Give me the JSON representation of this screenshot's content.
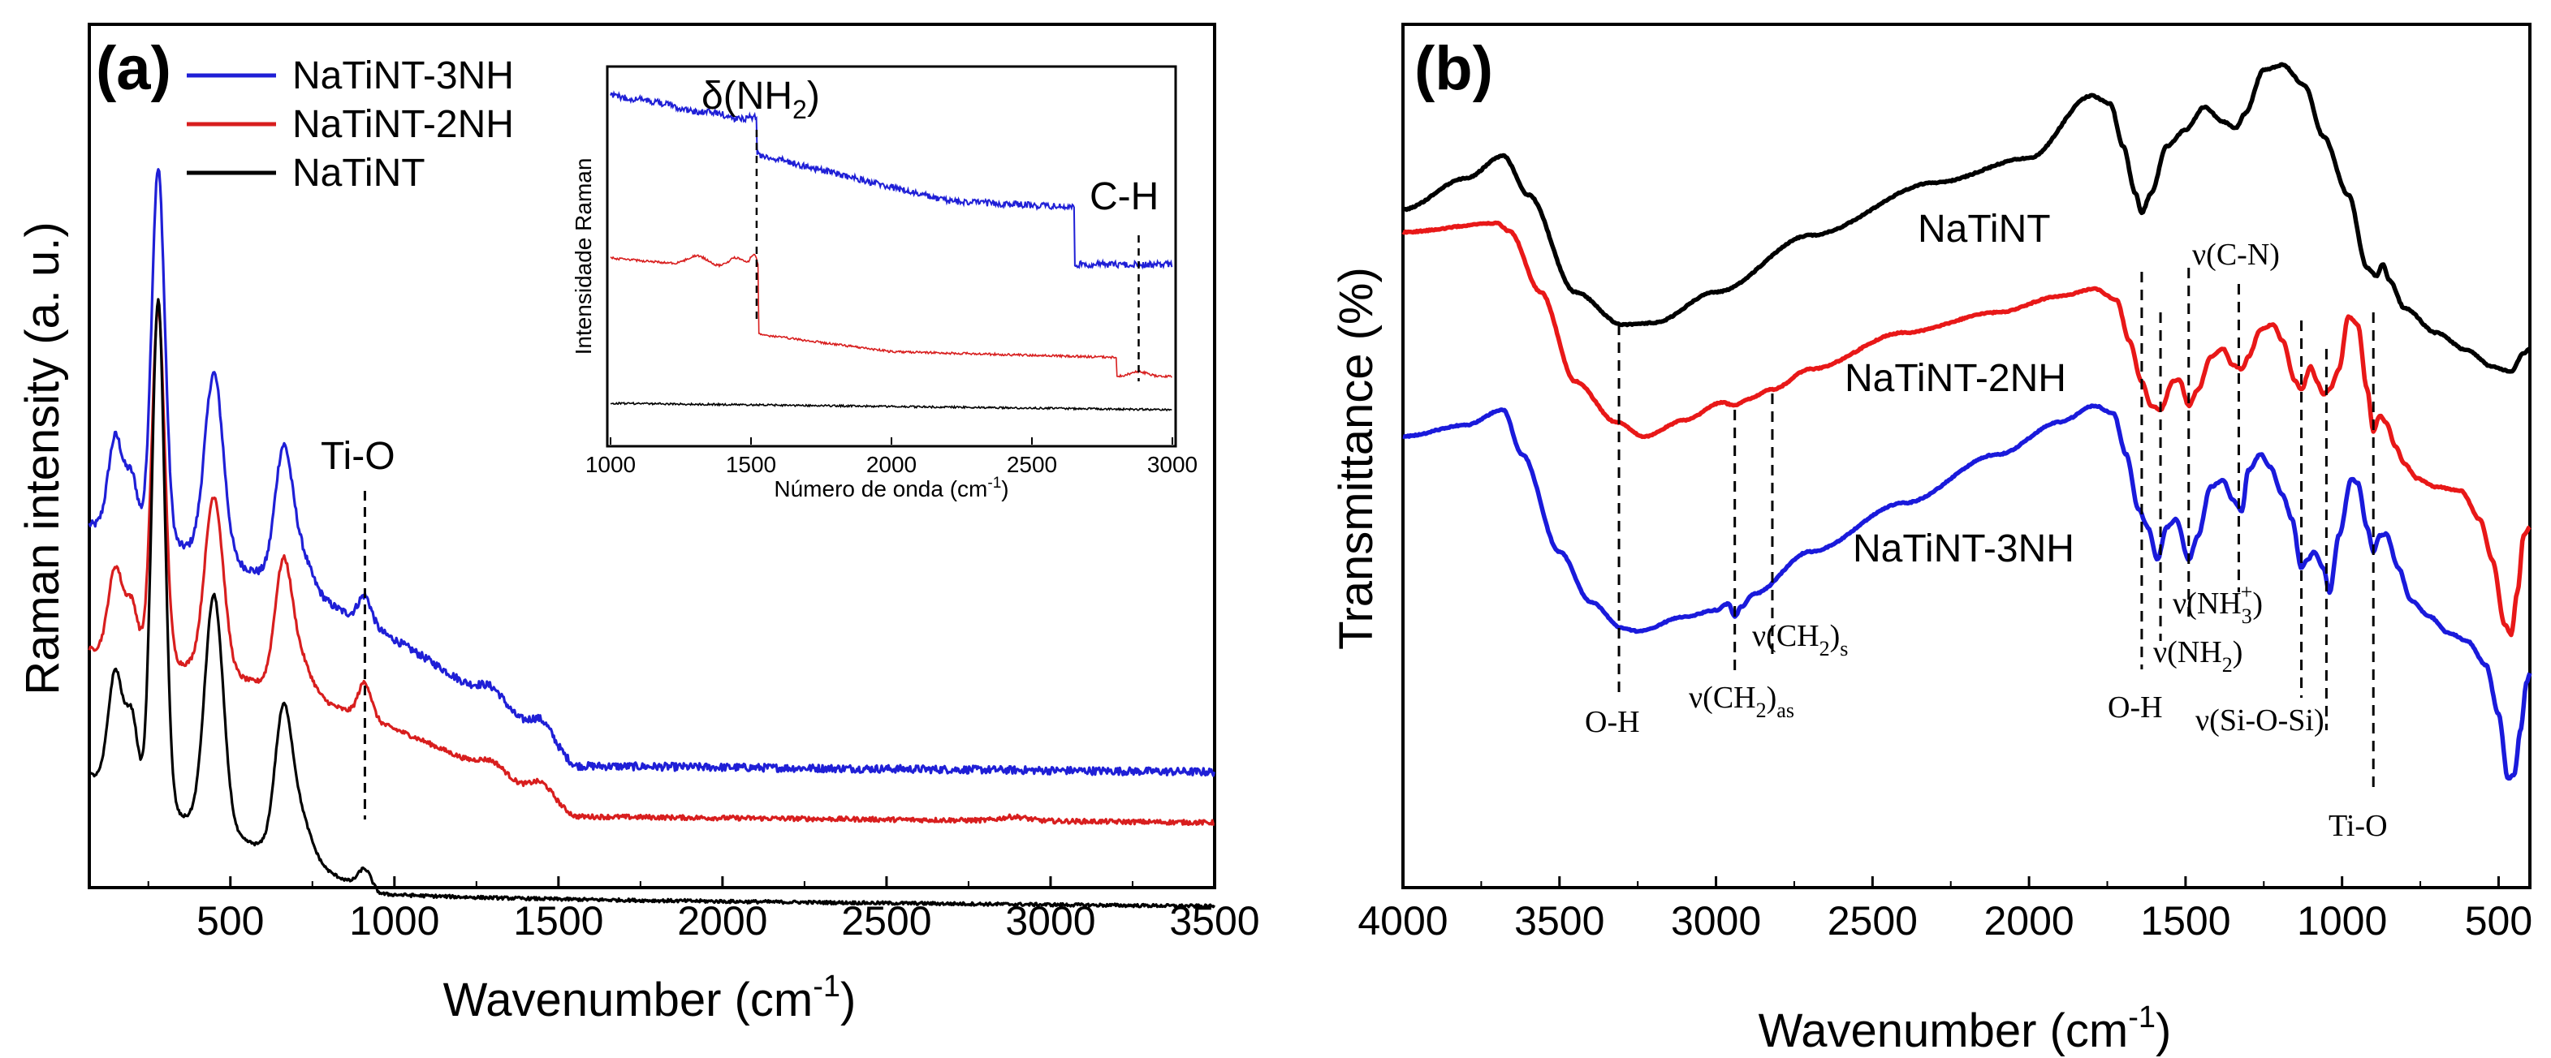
{
  "chart_data": [
    {
      "type": "line",
      "panel": "(a)",
      "title": "",
      "xlabel": "Wavenumber (cm",
      "xlabel_sup": "-1",
      "xlabel_close": ")",
      "ylabel": "Raman intensity (a. u.)",
      "xlim": [
        70,
        3500
      ],
      "xticks": [
        500,
        1000,
        1500,
        2000,
        2500,
        3000,
        3500
      ],
      "y_ticks_shown": false,
      "legend": "top-left",
      "series": [
        {
          "name": "NaTiNT-3NH",
          "color": "#1f1fd6",
          "offset": 0.82,
          "noise": 0.01,
          "background": {
            "start": 0.82,
            "end": 0.2,
            "plateau_at": 1550
          },
          "peaks": [
            [
              150,
              0.24,
              22
            ],
            [
              200,
              0.14,
              18
            ],
            [
              280,
              0.95,
              20
            ],
            [
              450,
              0.47,
              28
            ],
            [
              660,
              0.28,
              25
            ],
            [
              700,
              0.12,
              40
            ],
            [
              910,
              0.07,
              20
            ],
            [
              1300,
              0.04,
              40
            ],
            [
              1450,
              0.05,
              35
            ]
          ]
        },
        {
          "name": "NaTiNT-2NH",
          "color": "#d81e1e",
          "offset": 0.5,
          "noise": 0.006,
          "background": {
            "start": 0.5,
            "end": 0.07,
            "plateau_at": 1550
          },
          "peaks": [
            [
              150,
              0.22,
              22
            ],
            [
              200,
              0.13,
              18
            ],
            [
              280,
              0.9,
              20
            ],
            [
              450,
              0.45,
              28
            ],
            [
              660,
              0.27,
              25
            ],
            [
              700,
              0.11,
              40
            ],
            [
              910,
              0.09,
              20
            ],
            [
              1300,
              0.03,
              40
            ],
            [
              1450,
              0.04,
              35
            ],
            [
              2890,
              0.01,
              40
            ]
          ]
        },
        {
          "name": "NaTiNT",
          "color": "#000000",
          "offset": 0.04,
          "noise": 0.004,
          "background": {
            "start": 0.18,
            "end": 0.0,
            "plateau_at": 950
          },
          "peaks": [
            [
              150,
              0.3,
              22
            ],
            [
              200,
              0.2,
              18
            ],
            [
              280,
              1.3,
              20
            ],
            [
              450,
              0.6,
              28
            ],
            [
              660,
              0.3,
              25
            ],
            [
              700,
              0.14,
              40
            ],
            [
              910,
              0.05,
              20
            ]
          ]
        }
      ],
      "annotations": [
        {
          "text": "Ti-O",
          "x": 910
        }
      ],
      "inset": {
        "xlabel": "Número de onda (cm",
        "xlabel_sup": "-1",
        "xlabel_close": ")",
        "ylabel": "Intensidade Raman",
        "xlim": [
          1000,
          3000
        ],
        "xticks": [
          1000,
          1500,
          2000,
          2500,
          3000
        ],
        "series": [
          {
            "name": "NaTiNT-3NH",
            "color": "#1f1fd6"
          },
          {
            "name": "NaTiNT-2NH",
            "color": "#d81e1e"
          },
          {
            "name": "NaTiNT",
            "color": "#000000"
          }
        ],
        "annotations": [
          {
            "text": "δ(NH",
            "sub": "2",
            "close": ")",
            "x": 1520
          },
          {
            "text": "C-H",
            "x": 2880
          }
        ]
      }
    },
    {
      "type": "line",
      "panel": "(b)",
      "title": "",
      "xlabel": "Wavenumber (cm",
      "xlabel_sup": "-1",
      "xlabel_close": ")",
      "ylabel": "Transmittance (%)",
      "xlim": [
        4000,
        400
      ],
      "xticks": [
        4000,
        3500,
        3000,
        2500,
        2000,
        1500,
        1000,
        500
      ],
      "y_ticks_shown": false,
      "series": [
        {
          "name": "NaTiNT",
          "color": "#000000"
        },
        {
          "name": "NaTiNT-2NH",
          "color": "#e81818"
        },
        {
          "name": "NaTiNT-3NH",
          "color": "#1a1adb"
        }
      ],
      "line_positions": [
        3310,
        2940,
        2820,
        1640,
        1580,
        1490,
        1330,
        1130,
        1050,
        900
      ],
      "annotations": [
        {
          "text": "O-H",
          "x": 3310
        },
        {
          "text": "ν(CH",
          "sub": "2",
          "close": ")",
          "subtail": "as",
          "x": 2940
        },
        {
          "text": "ν(CH",
          "sub": "2",
          "close": ")",
          "subtail": "s",
          "x": 2820
        },
        {
          "text": "O-H",
          "x": 1640
        },
        {
          "text": "ν(NH",
          "sub": "2",
          "close": ")",
          "x": 1580
        },
        {
          "text": "ν(NH",
          "sub": "3",
          "sup": "+",
          "close": ")",
          "x": 1490
        },
        {
          "text": "ν(C-N)",
          "x": 1330
        },
        {
          "text": "ν(Si-O-Si)",
          "x": 1090
        },
        {
          "text": "Ti-O",
          "x": 900
        }
      ]
    }
  ]
}
